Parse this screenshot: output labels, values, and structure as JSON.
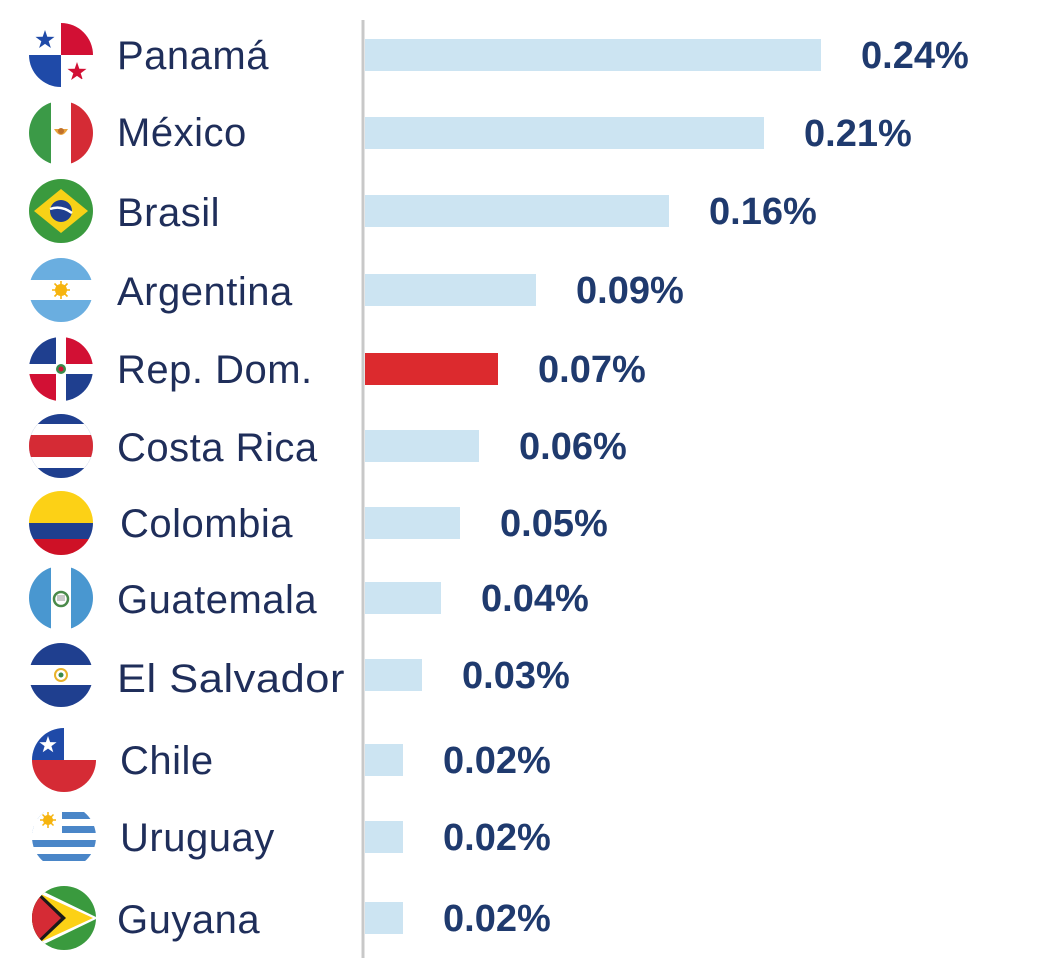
{
  "chart_data": {
    "type": "bar",
    "orientation": "horizontal",
    "title": "",
    "xlabel": "",
    "ylabel": "",
    "grid": false,
    "legend": "none",
    "xlim": [
      0,
      0.24
    ],
    "categories": [
      "Panamá",
      "México",
      "Brasil",
      "Argentina",
      "Rep. Dom.",
      "Costa Rica",
      "Colombia",
      "Guatemala",
      "El Salvador",
      "Chile",
      "Uruguay",
      "Guyana"
    ],
    "values": [
      0.24,
      0.21,
      0.16,
      0.09,
      0.07,
      0.06,
      0.05,
      0.04,
      0.03,
      0.02,
      0.02,
      0.02
    ],
    "value_labels": [
      "0.24%",
      "0.21%",
      "0.16%",
      "0.09%",
      "0.07%",
      "0.06%",
      "0.05%",
      "0.04%",
      "0.03%",
      "0.02%",
      "0.02%",
      "0.02%"
    ],
    "highlight_index": 4,
    "icons": [
      "panama-flag-icon",
      "mexico-flag-icon",
      "brazil-flag-icon",
      "argentina-flag-icon",
      "dominican-republic-flag-icon",
      "costa-rica-flag-icon",
      "colombia-flag-icon",
      "guatemala-flag-icon",
      "el-salvador-flag-icon",
      "chile-flag-icon",
      "uruguay-flag-icon",
      "guyana-flag-icon"
    ],
    "colors": {
      "bar": "#cce4f2",
      "highlight_bar": "#dc2a2e",
      "label_text": "#1f2e5a",
      "value_text": "#1f3a6e",
      "axis_line": "#c8c8c8"
    }
  }
}
